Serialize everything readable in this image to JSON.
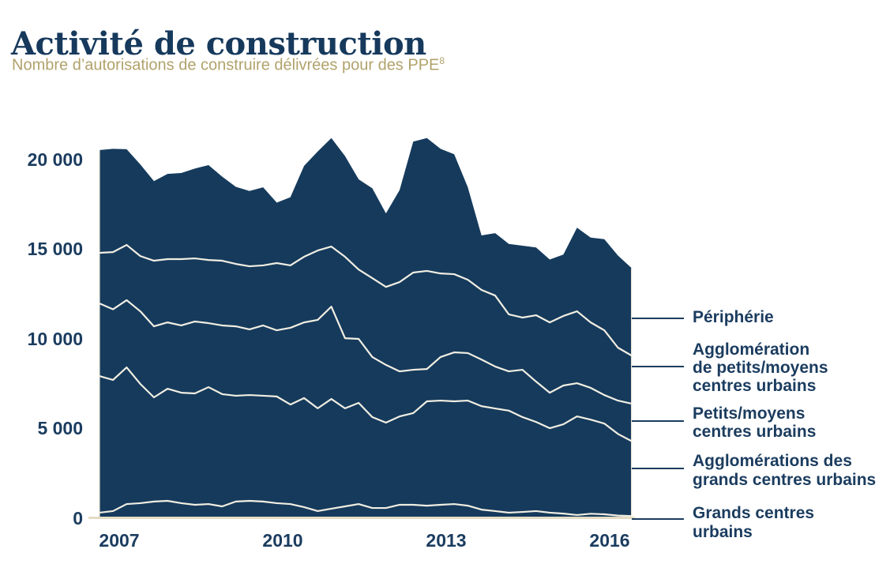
{
  "header": {
    "title": "Activité de construction",
    "subtitle": "Nombre d’autorisations de construire délivrées pour des PPE",
    "subtitle_note": "8"
  },
  "colors": {
    "area_fill": "#153a5c",
    "divider_line": "#f1eee2",
    "axis_line": "#e3dcc4",
    "title": "#16395c",
    "subtitle": "#b1a26b",
    "label": "#1b3c5f",
    "leader_line": "#1b3c5f",
    "bg": "#ffffff"
  },
  "chart_data": {
    "type": "area",
    "stacked": true,
    "title": "Activité de construction",
    "subtitle": "Nombre d’autorisations de construire délivrées pour des PPE (8)",
    "x_axis": {
      "range": "2007Q1–2016Q4",
      "start_year": 2007,
      "points_per_year": 4,
      "tick_labels": [
        "2007",
        "2010",
        "2013",
        "2016"
      ]
    },
    "y_axis": {
      "min": 0,
      "max": 21500,
      "tick_interval": 5000,
      "tick_labels": [
        "0",
        "5 000",
        "10 000",
        "15 000",
        "20 000"
      ],
      "grid": false
    },
    "legend_position": "right",
    "series": [
      {
        "name": "Grands centres urbains",
        "values": [
          310,
          400,
          790,
          840,
          930,
          970,
          840,
          750,
          790,
          660,
          930,
          970,
          930,
          840,
          790,
          620,
          400,
          530,
          660,
          790,
          570,
          570,
          750,
          750,
          700,
          750,
          790,
          700,
          480,
          400,
          310,
          350,
          400,
          310,
          260,
          180,
          250,
          220,
          150,
          120
        ]
      },
      {
        "name": "Agglomérations des grands centres urbains",
        "values": [
          7620,
          7310,
          7620,
          6650,
          5810,
          6250,
          6160,
          6210,
          6520,
          6260,
          5900,
          5900,
          5900,
          5950,
          5550,
          6080,
          5730,
          6120,
          5470,
          5640,
          5070,
          4760,
          4930,
          5110,
          5820,
          5810,
          5730,
          5860,
          5770,
          5720,
          5690,
          5290,
          4970,
          4710,
          4980,
          5500,
          5250,
          5060,
          4550,
          4180
        ]
      },
      {
        "name": "Petits/moyens centres urbains",
        "values": [
          4050,
          3940,
          3750,
          4050,
          3960,
          3700,
          3750,
          4010,
          3570,
          3830,
          3870,
          3660,
          3920,
          3690,
          4280,
          4220,
          4930,
          5150,
          3910,
          3570,
          3350,
          3220,
          2510,
          2420,
          1800,
          2430,
          2730,
          2650,
          2600,
          2340,
          2190,
          2640,
          2250,
          1980,
          2160,
          1850,
          1770,
          1590,
          1860,
          2090
        ]
      },
      {
        "name": "Agglomération de petits/moyens centres urbains",
        "values": [
          2820,
          3190,
          3080,
          3080,
          3660,
          3530,
          3700,
          3520,
          3520,
          3610,
          3480,
          3520,
          3350,
          3750,
          3480,
          3660,
          3870,
          3350,
          4540,
          3870,
          4400,
          4350,
          4980,
          5420,
          5470,
          4660,
          4360,
          4090,
          3880,
          3960,
          3180,
          2910,
          3700,
          3920,
          3880,
          4010,
          3650,
          3610,
          2950,
          2680
        ]
      },
      {
        "name": "Périphérie",
        "values": [
          5730,
          5760,
          5340,
          5110,
          4440,
          4750,
          4800,
          5010,
          5290,
          4690,
          4300,
          4200,
          4350,
          3370,
          3800,
          5070,
          5520,
          6050,
          5620,
          5030,
          5010,
          4100,
          5130,
          7300,
          7410,
          6950,
          6690,
          5150,
          3040,
          3480,
          3930,
          4010,
          3780,
          3510,
          3420,
          4660,
          4730,
          5080,
          5140,
          4880
        ]
      }
    ]
  },
  "legend": {
    "items": [
      {
        "lines": [
          "Périphérie"
        ]
      },
      {
        "lines": [
          "Agglomération",
          "de petits/moyens",
          "centres urbains"
        ]
      },
      {
        "lines": [
          "Petits/moyens",
          "centres urbains"
        ]
      },
      {
        "lines": [
          "Agglomérations des",
          "grands centres urbains"
        ]
      },
      {
        "lines": [
          "Grands centres",
          "urbains"
        ]
      }
    ]
  }
}
